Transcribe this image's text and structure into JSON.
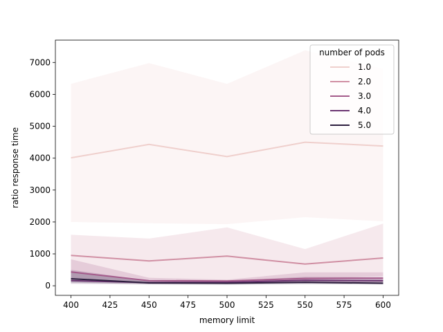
{
  "chart_data": {
    "type": "line",
    "title": "",
    "xlabel": "memory limit",
    "ylabel": "ratio response time",
    "xlim": [
      390,
      610
    ],
    "ylim": [
      -300,
      7700
    ],
    "x_ticks": [
      400,
      425,
      450,
      475,
      500,
      525,
      550,
      575,
      600
    ],
    "y_ticks": [
      0,
      1000,
      2000,
      3000,
      4000,
      5000,
      6000,
      7000
    ],
    "x": [
      400,
      450,
      500,
      550,
      600
    ],
    "legend": {
      "title": "number of pods",
      "placement": "top-right"
    },
    "grid": false,
    "series": [
      {
        "name": "1.0",
        "color": "#efcfcc",
        "values": [
          4010,
          4430,
          4050,
          4500,
          4380
        ],
        "lower": [
          2000,
          1960,
          1930,
          2150,
          2020
        ],
        "upper": [
          6330,
          6980,
          6330,
          7380,
          6800
        ]
      },
      {
        "name": "2.0",
        "color": "#d08fa3",
        "values": [
          950,
          780,
          930,
          680,
          870
        ],
        "lower": [
          450,
          200,
          130,
          200,
          300
        ],
        "upper": [
          1600,
          1480,
          1830,
          1150,
          1950
        ]
      },
      {
        "name": "3.0",
        "color": "#a45a8a",
        "values": [
          430,
          160,
          150,
          230,
          240
        ],
        "lower": [
          170,
          80,
          80,
          100,
          110
        ],
        "upper": [
          830,
          250,
          190,
          420,
          420
        ]
      },
      {
        "name": "4.0",
        "color": "#6a3370",
        "values": [
          160,
          100,
          110,
          170,
          160
        ],
        "lower": [
          60,
          50,
          60,
          70,
          70
        ],
        "upper": [
          500,
          160,
          150,
          280,
          260
        ]
      },
      {
        "name": "5.0",
        "color": "#2d1e3e",
        "values": [
          220,
          90,
          80,
          110,
          80
        ],
        "lower": [
          100,
          40,
          30,
          50,
          40
        ],
        "upper": [
          460,
          150,
          130,
          190,
          150
        ]
      }
    ]
  }
}
